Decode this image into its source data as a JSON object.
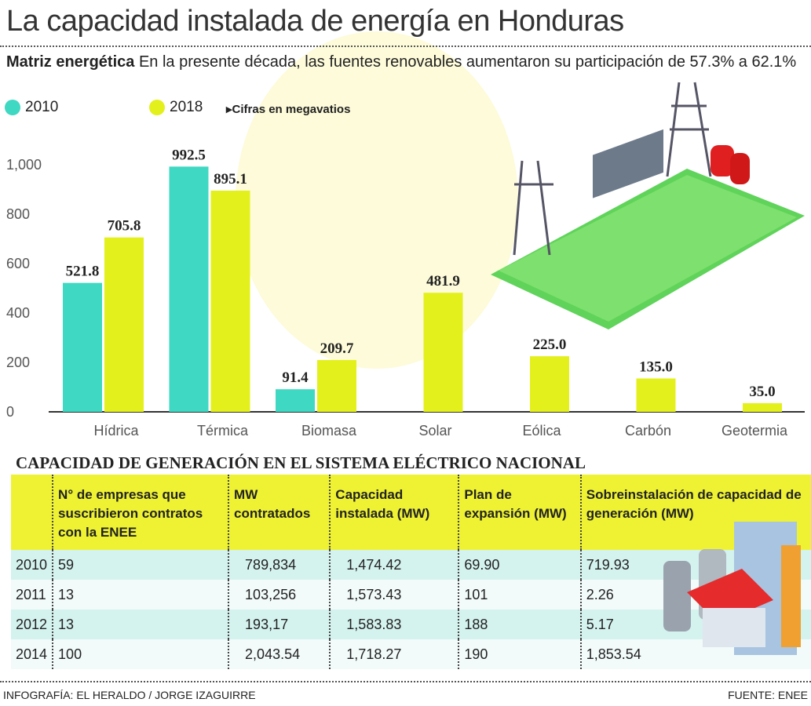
{
  "title": "La capacidad instalada de energía en Honduras",
  "subtitle_bold": "Matriz energética",
  "subtitle": "En la presente década, las fuentes renovables aumentaron su participación de 57.3% a 62.1%",
  "note": "▸Cifras en megavatios",
  "colors": {
    "2010": "#3fd8c2",
    "2018": "#e3f01c",
    "table_header": "#eef232",
    "table_row": "#d4f2ee"
  },
  "chart_data": {
    "type": "bar",
    "categories": [
      "Hídrica",
      "Térmica",
      "Biomasa",
      "Solar",
      "Eólica",
      "Carbón",
      "Geotermia"
    ],
    "series": [
      {
        "name": "2010",
        "values": [
          521.8,
          992.5,
          91.4,
          null,
          null,
          null,
          null
        ]
      },
      {
        "name": "2018",
        "values": [
          705.8,
          895.1,
          209.7,
          481.9,
          225.0,
          135.0,
          35.0
        ]
      }
    ],
    "data_labels": {
      "2010": [
        "521.8",
        "992.5",
        "91.4",
        "",
        "",
        "",
        ""
      ],
      "2018": [
        "705.8",
        "895.1",
        "209.7",
        "481.9",
        "225.0",
        "135.0",
        "35.0"
      ]
    },
    "yticks": [
      "0",
      "200",
      "400",
      "600",
      "800",
      "1,000"
    ],
    "ylim": [
      0,
      1000
    ],
    "legend": "top-left",
    "grid": false
  },
  "table": {
    "title": "CAPACIDAD DE GENERACIÓN EN EL SISTEMA ELÉCTRICO NACIONAL",
    "headers": [
      "",
      "N° de empresas que suscribieron contratos con la ENEE",
      "MW contratados",
      "Capacidad instalada (MW)",
      "Plan de expansión (MW)",
      "Sobreinstalación de capacidad de generación (MW)"
    ],
    "rows": [
      [
        "2010",
        "59",
        "789,834",
        "1,474.42",
        "69.90",
        "719.93"
      ],
      [
        "2011",
        "13",
        "103,256",
        "1,573.43",
        "101",
        "2.26"
      ],
      [
        "2012",
        "13",
        "193,17",
        "1,583.83",
        "188",
        "5.17"
      ],
      [
        "2014",
        "100",
        "2,043.54",
        "1,718.27",
        "190",
        "1,853.54"
      ]
    ]
  },
  "footer": {
    "credit": "INFOGRAFÍA: EL HERALDO / JORGE IZAGUIRRE",
    "source": "FUENTE: ENEE"
  }
}
